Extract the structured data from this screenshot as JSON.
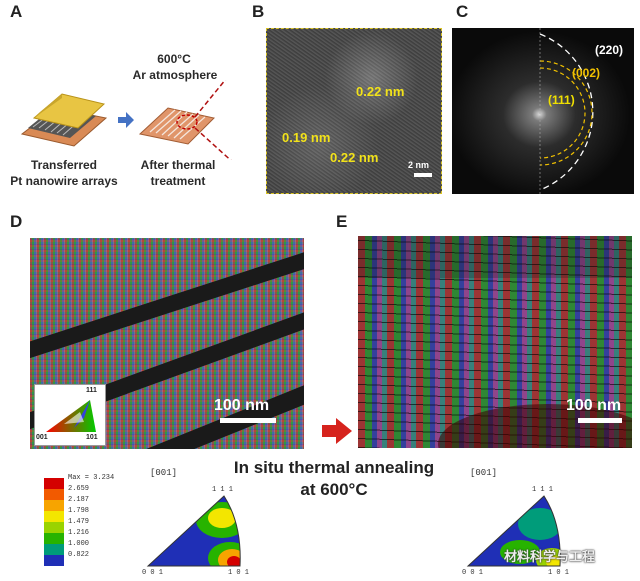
{
  "panels": {
    "a": {
      "letter": "A",
      "temp_label": "600°C",
      "atmos_label": "Ar atmosphere",
      "left_caption_1": "Transferred",
      "left_caption_2": "Pt nanowire arrays",
      "right_caption_1": "After thermal",
      "right_caption_2": "treatment"
    },
    "b": {
      "letter": "B",
      "spacing_top": "0.22 nm",
      "spacing_left": "0.19 nm",
      "spacing_bottom": "0.22 nm",
      "scale": "2 nm"
    },
    "c": {
      "letter": "C",
      "ring_220": "(220)",
      "ring_002": "(002)",
      "ring_111": "(111)"
    },
    "d": {
      "letter": "D",
      "scale": "100 nm",
      "key_top": "111",
      "key_left": "001",
      "key_right": "101"
    },
    "e": {
      "letter": "E",
      "scale": "100 nm"
    }
  },
  "center_caption_1": "In situ thermal annealing",
  "center_caption_2": "at 600°C",
  "pole_figures": {
    "left": {
      "direction": "[001]",
      "top": "1 1 1",
      "bottom_left": "0 0 1",
      "bottom_right": "1 0 1"
    },
    "right": {
      "direction": "[001]",
      "top": "1 1 1",
      "bottom_left": "0 0 1",
      "bottom_right": "1 0 1"
    }
  },
  "legend": {
    "max_label": "Max = 3.234",
    "values": [
      "2.659",
      "2.187",
      "1.798",
      "1.479",
      "1.216",
      "1.000",
      "0.822"
    ],
    "colors": [
      "#d40000",
      "#f25a00",
      "#f7a400",
      "#f3e600",
      "#9ad300",
      "#27b300",
      "#009c7a",
      "#1f2fb6"
    ]
  },
  "watermark": "材料科学与工程"
}
